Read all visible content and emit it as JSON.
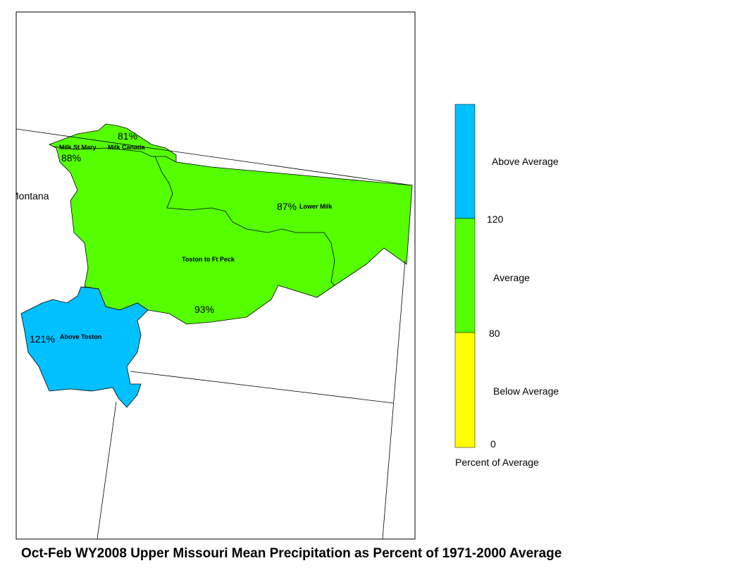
{
  "title": "Oct-Feb WY2008 Upper Missouri Mean Precipitation as Percent of 1971-2000 Average",
  "map": {
    "state_label": "Montana",
    "regions": [
      {
        "name": "Milk St Mary",
        "percent": "88%"
      },
      {
        "name": "Milk Canada",
        "percent": "81%"
      },
      {
        "name": "Lower Milk",
        "percent": "87%"
      },
      {
        "name": "Toston to Ft Peck",
        "percent": "93%"
      },
      {
        "name": "Above Toston",
        "percent": "121%"
      }
    ]
  },
  "legend": {
    "classes": [
      "Above Average",
      "Average",
      "Below Average"
    ],
    "breaks": [
      "120",
      "80",
      "0"
    ],
    "caption": "Percent of Average"
  }
}
